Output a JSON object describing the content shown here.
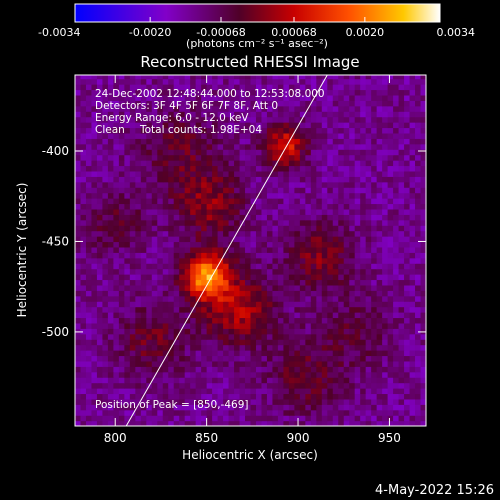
{
  "chart_data": {
    "type": "heatmap",
    "title": "Reconstructed RHESSI Image",
    "xlabel": "Heliocentric X (arcsec)",
    "ylabel": "Heliocentric Y (arcsec)",
    "xlim": [
      778,
      970
    ],
    "ylim": [
      -552,
      -358
    ],
    "xticks": [
      800,
      850,
      900,
      950
    ],
    "yticks": [
      -400,
      -450,
      -500
    ],
    "colorbar": {
      "range": [
        -0.0034,
        0.0034
      ],
      "tick_labels": [
        "-0.0034",
        "-0.0020",
        "-0.00068",
        "0.00068",
        "0.0020",
        "0.0034"
      ],
      "unit_label": "(photons cm⁻² s⁻¹ asec⁻²)"
    },
    "annotations": {
      "time_range": "24-Dec-2002 12:48:44.000 to 12:53:08.000",
      "detectors": "Detectors: 3F 4F 5F 6F 7F 8F, Att 0",
      "energy": "Energy Range: 6.0 - 12.0 keV",
      "clean": "Clean",
      "total_counts": "Total counts: 1.98E+04",
      "peak": "Position of Peak = [850,-469]"
    },
    "peak_position": [
      850,
      -469
    ],
    "limb_line": {
      "x": [
        806,
        916
      ],
      "y": [
        -552,
        -358
      ]
    },
    "sources": [
      {
        "x": 850,
        "y": -469,
        "amplitude": 0.0034,
        "sigma": 9
      },
      {
        "x": 868,
        "y": -488,
        "amplitude": 0.0016,
        "sigma": 14
      },
      {
        "x": 893,
        "y": -397,
        "amplitude": 0.0022,
        "sigma": 8
      },
      {
        "x": 852,
        "y": -430,
        "amplitude": 0.0013,
        "sigma": 13
      },
      {
        "x": 912,
        "y": -458,
        "amplitude": 0.0012,
        "sigma": 13
      },
      {
        "x": 820,
        "y": -505,
        "amplitude": 0.001,
        "sigma": 14
      },
      {
        "x": 905,
        "y": -525,
        "amplitude": 0.001,
        "sigma": 14
      },
      {
        "x": 835,
        "y": -400,
        "amplitude": 0.0009,
        "sigma": 16
      },
      {
        "x": 932,
        "y": -500,
        "amplitude": 0.0007,
        "sigma": 14
      },
      {
        "x": 800,
        "y": -440,
        "amplitude": 0.0008,
        "sigma": 12
      }
    ],
    "background": -0.0012
  },
  "footer": {
    "date": "4-May-2022 15:26"
  }
}
